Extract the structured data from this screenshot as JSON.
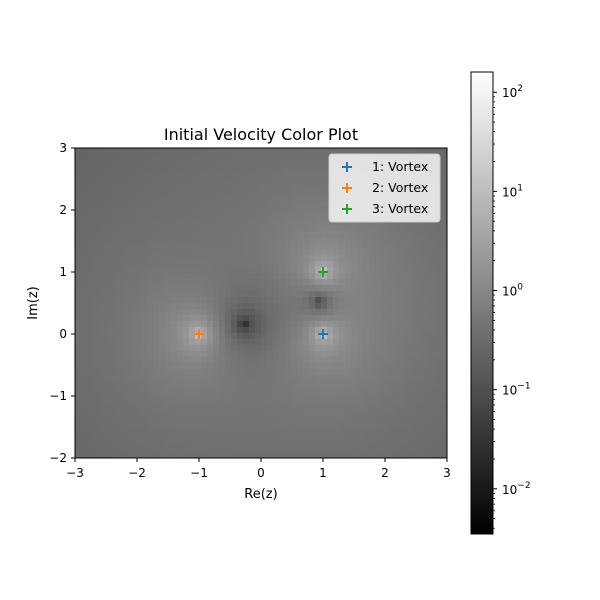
{
  "chart_data": {
    "type": "heatmap",
    "title": "Initial Velocity Color Plot",
    "xlabel": "Re(z)",
    "ylabel": "Im(z)",
    "xlim": [
      -3,
      3
    ],
    "ylim": [
      -2,
      3
    ],
    "x_ticks": [
      -3,
      -2,
      -1,
      0,
      1,
      2,
      3
    ],
    "y_ticks": [
      -2,
      -1,
      0,
      1,
      2,
      3
    ],
    "x_tick_labels": [
      "−3",
      "−2",
      "−1",
      "0",
      "1",
      "2",
      "3"
    ],
    "y_tick_labels": [
      "−2",
      "−1",
      "0",
      "1",
      "2",
      "3"
    ],
    "grid": false,
    "colormap": "gray",
    "color_scale": "log",
    "color_range": [
      0.0035,
      160
    ],
    "colorbar": {
      "ticks": [
        0.01,
        0.1,
        1,
        10,
        100
      ],
      "tick_base": "10",
      "tick_exponents": [
        "−2",
        "−1",
        "0",
        "1",
        "2"
      ]
    },
    "legend": {
      "placement": "upper-right"
    },
    "series": [
      {
        "name": "1: Vortex",
        "type": "scatter",
        "marker": "+",
        "color": "#1f77b4",
        "x": [
          1
        ],
        "y": [
          0
        ]
      },
      {
        "name": "2: Vortex",
        "type": "scatter",
        "marker": "+",
        "color": "#ff7f0e",
        "x": [
          -1
        ],
        "y": [
          0
        ]
      },
      {
        "name": "3: Vortex",
        "type": "scatter",
        "marker": "+",
        "color": "#2ca02c",
        "x": [
          1
        ],
        "y": [
          1
        ]
      }
    ]
  }
}
